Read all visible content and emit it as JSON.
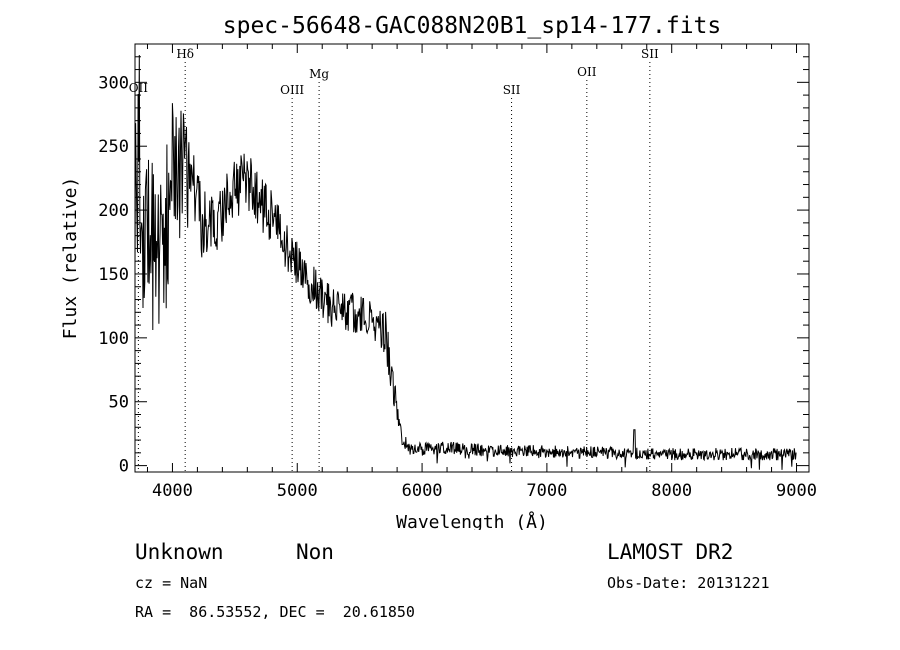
{
  "chart_data": {
    "type": "line",
    "title": "spec-56648-GAC088N20B1_sp14-177.fits",
    "xlabel": "Wavelength (Å)",
    "ylabel": "Flux (relative)",
    "xlim": [
      3700,
      9100
    ],
    "ylim": [
      -5,
      330
    ],
    "xticks": [
      4000,
      5000,
      6000,
      7000,
      8000,
      9000
    ],
    "yticks": [
      0,
      50,
      100,
      150,
      200,
      250,
      300
    ],
    "grid": false,
    "lines": [
      {
        "label": "OII",
        "wavelength": 3727
      },
      {
        "label": "Hδ",
        "wavelength": 4102
      },
      {
        "label": "OIII",
        "wavelength": 4959
      },
      {
        "label": "Mg",
        "wavelength": 5175
      },
      {
        "label": "SII",
        "wavelength": 6717
      },
      {
        "label": "OII",
        "wavelength": 7320
      },
      {
        "label": "SII",
        "wavelength": 7825
      }
    ],
    "spectrum_anchors": {
      "x": [
        3700,
        3720,
        3760,
        3800,
        3850,
        3900,
        3950,
        4000,
        4050,
        4100,
        4150,
        4200,
        4250,
        4300,
        4350,
        4400,
        4450,
        4500,
        4550,
        4600,
        4650,
        4700,
        4750,
        4800,
        4850,
        4900,
        4950,
        5000,
        5050,
        5100,
        5150,
        5200,
        5250,
        5300,
        5350,
        5400,
        5450,
        5500,
        5550,
        5600,
        5650,
        5700,
        5750,
        5800,
        5850,
        5900,
        6000,
        6200,
        6500,
        7000,
        7500,
        7700,
        8000,
        8500,
        9000
      ],
      "y": [
        180,
        240,
        210,
        190,
        175,
        175,
        185,
        225,
        230,
        225,
        215,
        205,
        185,
        190,
        185,
        200,
        210,
        215,
        220,
        225,
        215,
        205,
        200,
        195,
        185,
        175,
        165,
        160,
        155,
        145,
        140,
        130,
        125,
        125,
        125,
        120,
        120,
        120,
        118,
        115,
        110,
        105,
        80,
        40,
        20,
        13,
        13,
        14,
        12,
        11,
        10,
        10,
        9,
        9,
        9
      ],
      "noise": [
        60,
        60,
        55,
        50,
        45,
        40,
        40,
        38,
        35,
        30,
        25,
        22,
        20,
        18,
        15,
        15,
        15,
        15,
        15,
        15,
        14,
        14,
        14,
        13,
        13,
        12,
        12,
        12,
        12,
        11,
        11,
        11,
        11,
        10,
        10,
        10,
        10,
        10,
        10,
        10,
        10,
        12,
        12,
        8,
        4,
        3,
        3,
        3,
        3,
        3,
        3,
        3,
        3,
        3,
        3
      ]
    }
  },
  "info": {
    "class": "Unknown",
    "subclass": "Non",
    "survey": "LAMOST DR2",
    "cz": "cz = NaN",
    "obs_date": "Obs-Date: 20131221",
    "radec": "RA =  86.53552, DEC =  20.61850"
  }
}
